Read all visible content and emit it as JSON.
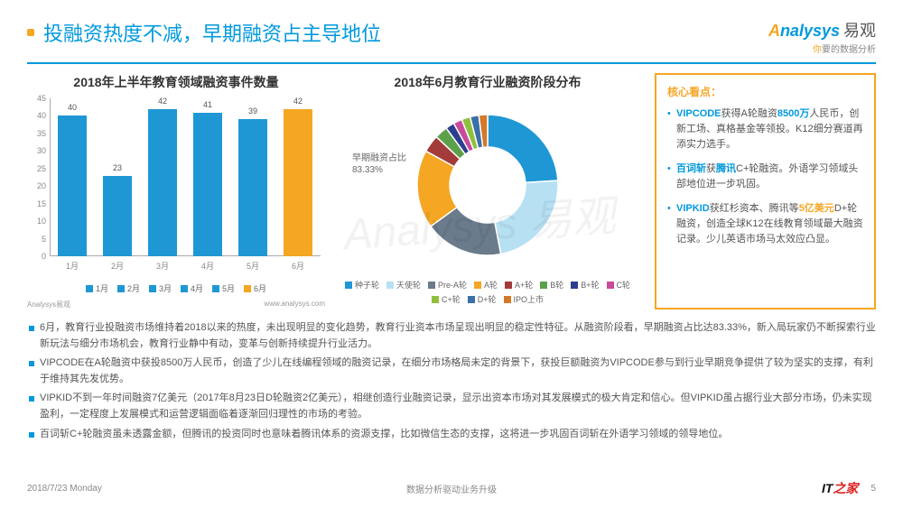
{
  "header": {
    "title": "投融资热度不减，早期融资占主导地位",
    "logo_en": "nalysys",
    "logo_cn": "易观",
    "logo_tagline_pre": "你",
    "logo_tagline_post": "要的数据分析"
  },
  "bar_chart": {
    "title": "2018年上半年教育领域融资事件数量",
    "categories": [
      "1月",
      "2月",
      "3月",
      "4月",
      "5月",
      "6月"
    ],
    "values": [
      40,
      23,
      42,
      41,
      39,
      42
    ],
    "colors": [
      "#1f97d4",
      "#1f97d4",
      "#1f97d4",
      "#1f97d4",
      "#1f97d4",
      "#f5a623"
    ],
    "ylim": [
      0,
      45
    ],
    "ytick_step": 5,
    "label_fontsize": 9,
    "legend_items": [
      {
        "label": "1月",
        "color": "#1f97d4"
      },
      {
        "label": "2月",
        "color": "#1f97d4"
      },
      {
        "label": "3月",
        "color": "#1f97d4"
      },
      {
        "label": "4月",
        "color": "#1f97d4"
      },
      {
        "label": "5月",
        "color": "#1f97d4"
      },
      {
        "label": "6月",
        "color": "#f5a623"
      }
    ],
    "source_left": "Analysys易观",
    "source_right": "www.analysys.com"
  },
  "pie_chart": {
    "title": "2018年6月教育行业融资阶段分布",
    "annotation_line1": "早期融资占比",
    "annotation_line2": "83.33%",
    "segments": [
      {
        "label": "种子轮",
        "color": "#1f97d4",
        "pct": 24
      },
      {
        "label": "天使轮",
        "color": "#b7e0f3",
        "pct": 23
      },
      {
        "label": "Pre-A轮",
        "color": "#6a7b8c",
        "pct": 18
      },
      {
        "label": "A轮",
        "color": "#f5a623",
        "pct": 18
      },
      {
        "label": "A+轮",
        "color": "#a43b3b",
        "pct": 4
      },
      {
        "label": "B轮",
        "color": "#5da04a",
        "pct": 3
      },
      {
        "label": "B+轮",
        "color": "#2d3e8f",
        "pct": 2
      },
      {
        "label": "C轮",
        "color": "#c94a9c",
        "pct": 2
      },
      {
        "label": "C+轮",
        "color": "#8fbf3f",
        "pct": 2
      },
      {
        "label": "D+轮",
        "color": "#3b6fa8",
        "pct": 2
      },
      {
        "label": "IPO上市",
        "color": "#d4782a",
        "pct": 2
      }
    ]
  },
  "sidebox": {
    "title": "核心看点：",
    "items_html": [
      "<span class='hl-blue'>VIPCODE</span>获得A轮融资<span class='hl-blue'>8500万</span>人民币，创新工场、真格基金等领投。K12细分赛道再添实力选手。",
      "<span class='hl-blue'>百词斩</span>获<span class='hl-blue'>腾讯</span>C+轮融资。外语学习领域头部地位进一步巩固。",
      "<span class='hl-blue'>VIPKID</span>获红杉资本、腾讯等<span class='hl-orange'>5亿美元</span>D+轮融资，创造全球K12在线教育领域最大融资记录。少儿英语市场马太效应凸显。"
    ]
  },
  "bullets": [
    "6月，教育行业投融资市场维持着2018以来的热度，未出现明显的变化趋势，教育行业资本市场呈现出明显的稳定性特征。从融资阶段看，早期融资占比达83.33%，新入局玩家仍不断探索行业新玩法与细分市场机会，教育行业静中有动，变革与创新持续提升行业活力。",
    "VIPCODE在A轮融资中获投8500万人民币，创造了少儿在线编程领域的融资记录，在细分市场格局未定的背景下，获投巨额融资为VIPCODE参与到行业早期竞争提供了较为坚实的支撑，有利于维持其先发优势。",
    "VIPKID不到一年时间融资7亿美元（2017年8月23日D轮融资2亿美元），相继创造行业融资记录，显示出资本市场对其发展模式的极大肯定和信心。但VIPKID虽占据行业大部分市场，仍未实现盈利，一定程度上发展模式和运营逻辑面临着逐渐回归理性的市场的考验。",
    "百词斩C+轮融资虽未透露金额，但腾讯的投资同时也意味着腾讯体系的资源支撑，比如微信生态的支撑，这将进一步巩固百词斩在外语学习领域的领导地位。"
  ],
  "footer": {
    "date": "2018/7/23 Monday",
    "center": "数据分析驱动业务升级",
    "page_num": "5",
    "it_label_it": "IT",
    "it_label_home": "之家"
  },
  "watermark": "Analysys 易观"
}
